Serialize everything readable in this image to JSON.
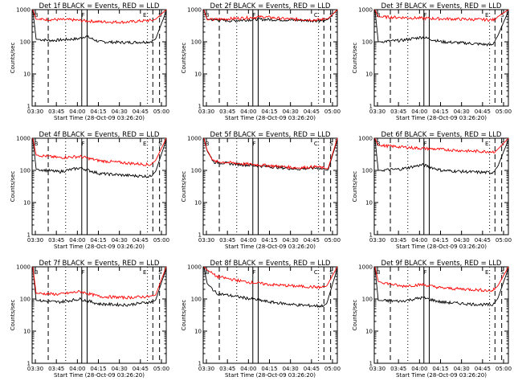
{
  "colors": {
    "events": "#000000",
    "lld": "#ff0000",
    "background": "#ffffff",
    "axes": "#000000"
  },
  "chart_data": [
    {
      "type": "line",
      "title": "Det 1f BLACK = Events, RED = LLD",
      "xlabel": "Start Time (28-Oct-09 03:26:20)",
      "ylabel": "Counts/sec",
      "x_ticks": [
        "03:30",
        "03:45",
        "04:00",
        "04:15",
        "04:30",
        "04:45",
        "05:00"
      ],
      "y_ticks": [
        "1",
        "10",
        "100",
        "1000"
      ],
      "y_scale": "log",
      "ylim": [
        1,
        1000
      ],
      "markers": [
        "B",
        "F",
        "E",
        "S"
      ],
      "series": [
        {
          "name": "Events",
          "color": "#000000",
          "start": 1000,
          "points": [
            [
              0.03,
              120
            ],
            [
              0.15,
              110
            ],
            [
              0.35,
              125
            ],
            [
              0.4,
              150
            ],
            [
              0.5,
              100
            ],
            [
              0.7,
              95
            ],
            [
              0.88,
              100
            ],
            [
              0.92,
              120
            ],
            [
              1.0,
              900
            ]
          ]
        },
        {
          "name": "LLD",
          "color": "#ff0000",
          "start": 1000,
          "points": [
            [
              0.03,
              500
            ],
            [
              0.3,
              480
            ],
            [
              0.5,
              420
            ],
            [
              0.7,
              410
            ],
            [
              0.9,
              470
            ],
            [
              0.92,
              500
            ],
            [
              1.0,
              1000
            ]
          ]
        }
      ]
    },
    {
      "type": "line",
      "title": "Det 2f BLACK = Events, RED = LLD",
      "xlabel": "Start Time (28-Oct-09 03:26:20)",
      "ylabel": "Counts/sec",
      "x_ticks": [
        "03:30",
        "03:45",
        "04:00",
        "04:15",
        "04:30",
        "04:45",
        "05:00"
      ],
      "y_ticks": [
        "1",
        "10",
        "100",
        "1000"
      ],
      "y_scale": "log",
      "ylim": [
        1,
        1000
      ],
      "markers": [
        "B",
        "F",
        "C",
        "S"
      ],
      "series": [
        {
          "name": "Events",
          "color": "#000000",
          "start": 1000,
          "points": [
            [
              0.03,
              500
            ],
            [
              0.2,
              450
            ],
            [
              0.4,
              500
            ],
            [
              0.6,
              480
            ],
            [
              0.9,
              450
            ],
            [
              0.93,
              500
            ],
            [
              1.0,
              1000
            ]
          ]
        },
        {
          "name": "LLD",
          "color": "#ff0000",
          "start": 1000,
          "points": [
            [
              0.03,
              480
            ],
            [
              0.2,
              520
            ],
            [
              0.45,
              600
            ],
            [
              0.6,
              520
            ],
            [
              0.85,
              480
            ],
            [
              0.93,
              520
            ],
            [
              1.0,
              1000
            ]
          ]
        }
      ]
    },
    {
      "type": "line",
      "title": "Det 3f BLACK = Events, RED = LLD",
      "xlabel": "Start Time (28-Oct-09 03:26:20)",
      "ylabel": "Counts/sec",
      "x_ticks": [
        "03:30",
        "03:45",
        "04:00",
        "04:15",
        "04:30",
        "04:45",
        "05:00"
      ],
      "y_ticks": [
        "1",
        "10",
        "100",
        "1000"
      ],
      "y_scale": "log",
      "ylim": [
        1,
        1000
      ],
      "markers": [
        "B",
        "F",
        "E",
        "S"
      ],
      "series": [
        {
          "name": "Events",
          "color": "#000000",
          "start": 1000,
          "points": [
            [
              0.03,
              100
            ],
            [
              0.2,
              110
            ],
            [
              0.36,
              140
            ],
            [
              0.5,
              100
            ],
            [
              0.7,
              90
            ],
            [
              0.88,
              80
            ],
            [
              0.92,
              150
            ],
            [
              1.0,
              900
            ]
          ]
        },
        {
          "name": "LLD",
          "color": "#ff0000",
          "start": 1000,
          "points": [
            [
              0.03,
              600
            ],
            [
              0.3,
              550
            ],
            [
              0.5,
              520
            ],
            [
              0.7,
              500
            ],
            [
              0.9,
              480
            ],
            [
              0.92,
              600
            ],
            [
              1.0,
              1000
            ]
          ]
        }
      ]
    },
    {
      "type": "line",
      "title": "Det 4f BLACK = Events, RED = LLD",
      "xlabel": "Start Time (28-Oct-09 03:26:20)",
      "ylabel": "Counts/sec",
      "x_ticks": [
        "03:30",
        "03:45",
        "04:00",
        "04:15",
        "04:30",
        "04:45",
        "05:00"
      ],
      "y_ticks": [
        "1",
        "10",
        "100",
        "1000"
      ],
      "y_scale": "log",
      "ylim": [
        1,
        1000
      ],
      "markers": [
        "B",
        "F",
        "E",
        "S"
      ],
      "series": [
        {
          "name": "Events",
          "color": "#000000",
          "start": 1000,
          "points": [
            [
              0.03,
              110
            ],
            [
              0.2,
              90
            ],
            [
              0.36,
              120
            ],
            [
              0.5,
              80
            ],
            [
              0.7,
              70
            ],
            [
              0.88,
              65
            ],
            [
              0.92,
              90
            ],
            [
              1.0,
              900
            ]
          ]
        },
        {
          "name": "LLD",
          "color": "#ff0000",
          "start": 1000,
          "points": [
            [
              0.03,
              300
            ],
            [
              0.2,
              250
            ],
            [
              0.36,
              270
            ],
            [
              0.5,
              200
            ],
            [
              0.7,
              170
            ],
            [
              0.88,
              150
            ],
            [
              0.92,
              200
            ],
            [
              1.0,
              1000
            ]
          ]
        }
      ]
    },
    {
      "type": "line",
      "title": "Det 5f BLACK = Events, RED = LLD",
      "xlabel": "Start Time (28-Oct-09 03:26:20)",
      "ylabel": "Counts/sec",
      "x_ticks": [
        "03:30",
        "03:45",
        "04:00",
        "04:15",
        "04:30",
        "04:45",
        "05:00"
      ],
      "y_ticks": [
        "1",
        "10",
        "100",
        "1000"
      ],
      "y_scale": "log",
      "ylim": [
        1,
        1000
      ],
      "markers": [
        "B",
        "F",
        "C",
        "S"
      ],
      "series": [
        {
          "name": "Events",
          "color": "#000000",
          "start": 1000,
          "points": [
            [
              0.03,
              400
            ],
            [
              0.08,
              180
            ],
            [
              0.3,
              150
            ],
            [
              0.5,
              130
            ],
            [
              0.7,
              110
            ],
            [
              0.85,
              120
            ],
            [
              0.93,
              100
            ],
            [
              1.0,
              900
            ]
          ]
        },
        {
          "name": "LLD",
          "color": "#ff0000",
          "start": 1000,
          "points": [
            [
              0.03,
              420
            ],
            [
              0.08,
              190
            ],
            [
              0.3,
              160
            ],
            [
              0.5,
              140
            ],
            [
              0.7,
              120
            ],
            [
              0.85,
              130
            ],
            [
              0.93,
              110
            ],
            [
              1.0,
              1000
            ]
          ]
        }
      ]
    },
    {
      "type": "line",
      "title": "Det 6f BLACK = Events, RED = LLD",
      "xlabel": "Start Time (28-Oct-09 03:26:20)",
      "ylabel": "Counts/sec",
      "x_ticks": [
        "03:30",
        "03:45",
        "04:00",
        "04:15",
        "04:30",
        "04:45",
        "05:00"
      ],
      "y_ticks": [
        "1",
        "10",
        "100",
        "1000"
      ],
      "y_scale": "log",
      "ylim": [
        1,
        1000
      ],
      "markers": [
        "B",
        "F",
        "E",
        "S"
      ],
      "series": [
        {
          "name": "Events",
          "color": "#000000",
          "start": 1000,
          "points": [
            [
              0.03,
              100
            ],
            [
              0.2,
              110
            ],
            [
              0.36,
              150
            ],
            [
              0.5,
              100
            ],
            [
              0.7,
              90
            ],
            [
              0.88,
              85
            ],
            [
              0.92,
              130
            ],
            [
              1.0,
              900
            ]
          ]
        },
        {
          "name": "LLD",
          "color": "#ff0000",
          "start": 1000,
          "points": [
            [
              0.03,
              600
            ],
            [
              0.3,
              500
            ],
            [
              0.5,
              450
            ],
            [
              0.7,
              400
            ],
            [
              0.9,
              380
            ],
            [
              0.92,
              450
            ],
            [
              1.0,
              1000
            ]
          ]
        }
      ]
    },
    {
      "type": "line",
      "title": "Det 7f BLACK = Events, RED = LLD",
      "xlabel": "Start Time (28-Oct-09 03:26:20)",
      "ylabel": "Counts/sec",
      "x_ticks": [
        "03:30",
        "03:45",
        "04:00",
        "04:15",
        "04:30",
        "04:45",
        "05:00"
      ],
      "y_ticks": [
        "1",
        "10",
        "100",
        "1000"
      ],
      "y_scale": "log",
      "ylim": [
        1,
        1000
      ],
      "markers": [
        "B",
        "F",
        "E",
        "S"
      ],
      "series": [
        {
          "name": "Events",
          "color": "#000000",
          "start": 1000,
          "points": [
            [
              0.03,
              90
            ],
            [
              0.2,
              80
            ],
            [
              0.36,
              100
            ],
            [
              0.5,
              70
            ],
            [
              0.7,
              65
            ],
            [
              0.88,
              80
            ],
            [
              0.92,
              90
            ],
            [
              1.0,
              900
            ]
          ]
        },
        {
          "name": "LLD",
          "color": "#ff0000",
          "start": 1000,
          "points": [
            [
              0.03,
              150
            ],
            [
              0.2,
              140
            ],
            [
              0.36,
              170
            ],
            [
              0.5,
              120
            ],
            [
              0.7,
              110
            ],
            [
              0.88,
              120
            ],
            [
              0.92,
              130
            ],
            [
              1.0,
              1000
            ]
          ]
        }
      ]
    },
    {
      "type": "line",
      "title": "Det 8f BLACK = Events, RED = LLD",
      "xlabel": "Start Time (28-Oct-09 03:26:20)",
      "ylabel": "Counts/sec",
      "x_ticks": [
        "03:30",
        "03:45",
        "04:00",
        "04:15",
        "04:30",
        "04:45",
        "05:00"
      ],
      "y_ticks": [
        "1",
        "10",
        "100",
        "1000"
      ],
      "y_scale": "log",
      "ylim": [
        1,
        1000
      ],
      "markers": [
        "B",
        "F",
        "C",
        "S"
      ],
      "series": [
        {
          "name": "Events",
          "color": "#000000",
          "start": 1000,
          "points": [
            [
              0.03,
              300
            ],
            [
              0.1,
              150
            ],
            [
              0.3,
              110
            ],
            [
              0.5,
              80
            ],
            [
              0.7,
              65
            ],
            [
              0.88,
              60
            ],
            [
              0.92,
              70
            ],
            [
              1.0,
              900
            ]
          ]
        },
        {
          "name": "LLD",
          "color": "#ff0000",
          "start": 1000,
          "points": [
            [
              0.03,
              800
            ],
            [
              0.1,
              500
            ],
            [
              0.3,
              350
            ],
            [
              0.5,
              280
            ],
            [
              0.7,
              250
            ],
            [
              0.88,
              230
            ],
            [
              0.92,
              250
            ],
            [
              1.0,
              1000
            ]
          ]
        }
      ]
    },
    {
      "type": "line",
      "title": "Det 9f BLACK = Events, RED = LLD",
      "xlabel": "Start Time (28-Oct-09 03:26:20)",
      "ylabel": "Counts/sec",
      "x_ticks": [
        "03:30",
        "03:45",
        "04:00",
        "04:15",
        "04:30",
        "04:45",
        "05:00"
      ],
      "y_ticks": [
        "1",
        "10",
        "100",
        "1000"
      ],
      "y_scale": "log",
      "ylim": [
        1,
        1000
      ],
      "markers": [
        "B",
        "F",
        "E",
        "S"
      ],
      "series": [
        {
          "name": "Events",
          "color": "#000000",
          "start": 1000,
          "points": [
            [
              0.03,
              90
            ],
            [
              0.2,
              85
            ],
            [
              0.36,
              110
            ],
            [
              0.5,
              80
            ],
            [
              0.7,
              70
            ],
            [
              0.88,
              65
            ],
            [
              0.92,
              100
            ],
            [
              1.0,
              900
            ]
          ]
        },
        {
          "name": "LLD",
          "color": "#ff0000",
          "start": 1000,
          "points": [
            [
              0.03,
              350
            ],
            [
              0.2,
              250
            ],
            [
              0.36,
              280
            ],
            [
              0.5,
              220
            ],
            [
              0.7,
              200
            ],
            [
              0.88,
              180
            ],
            [
              0.92,
              250
            ],
            [
              1.0,
              1000
            ]
          ]
        }
      ]
    }
  ]
}
